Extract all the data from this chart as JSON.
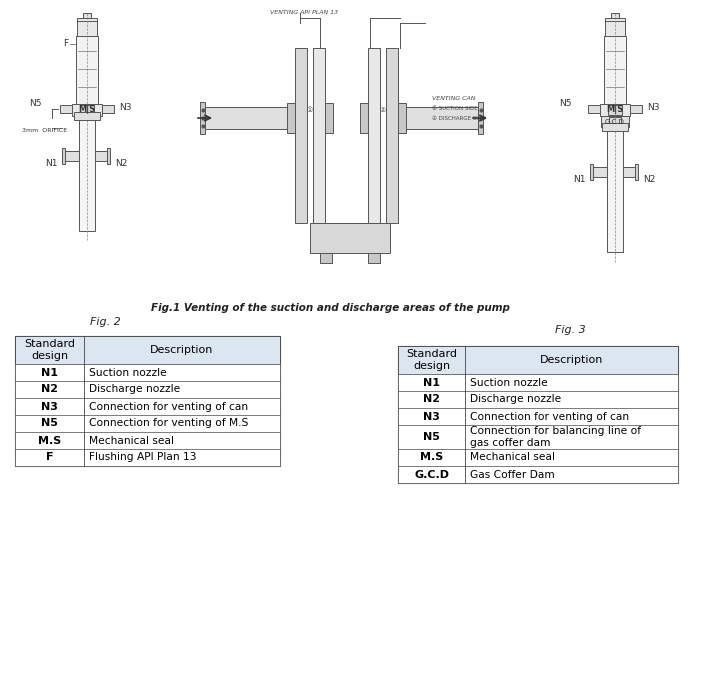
{
  "fig_caption": "Fig.1 Venting of the suction and discharge areas of the pump",
  "fig2_label": "Fig. 2",
  "fig3_label": "Fig. 3",
  "table2_title_col1": "Standard\ndesign",
  "table2_title_col2": "Description",
  "table2_rows": [
    [
      "N1",
      "Suction nozzle"
    ],
    [
      "N2",
      "Discharge nozzle"
    ],
    [
      "N3",
      "Connection for venting of can"
    ],
    [
      "N5",
      "Connection for venting of M.S"
    ],
    [
      "M.S",
      "Mechanical seal"
    ],
    [
      "F",
      "Flushing API Plan 13"
    ]
  ],
  "table3_title_col1": "Standard\ndesign",
  "table3_title_col2": "Description",
  "table3_rows": [
    [
      "N1",
      "Suction nozzle"
    ],
    [
      "N2",
      "Discharge nozzle"
    ],
    [
      "N3",
      "Connection for venting of can"
    ],
    [
      "N5",
      "Connection for balancing line of\ngas coffer dam"
    ],
    [
      "M.S",
      "Mechanical seal"
    ],
    [
      "G.C.D",
      "Gas Coffer Dam"
    ]
  ],
  "bg_color": "#ffffff",
  "header_bg": "#dce6f1",
  "text_color": "#000000",
  "border_color": "#444444",
  "gray": "#555555",
  "light_gray": "#e8e8e8",
  "font_size_table": 8.0,
  "font_size_caption": 7.5,
  "font_size_figlabel": 8.0,
  "font_size_label": 6.5,
  "font_size_small": 5.5
}
